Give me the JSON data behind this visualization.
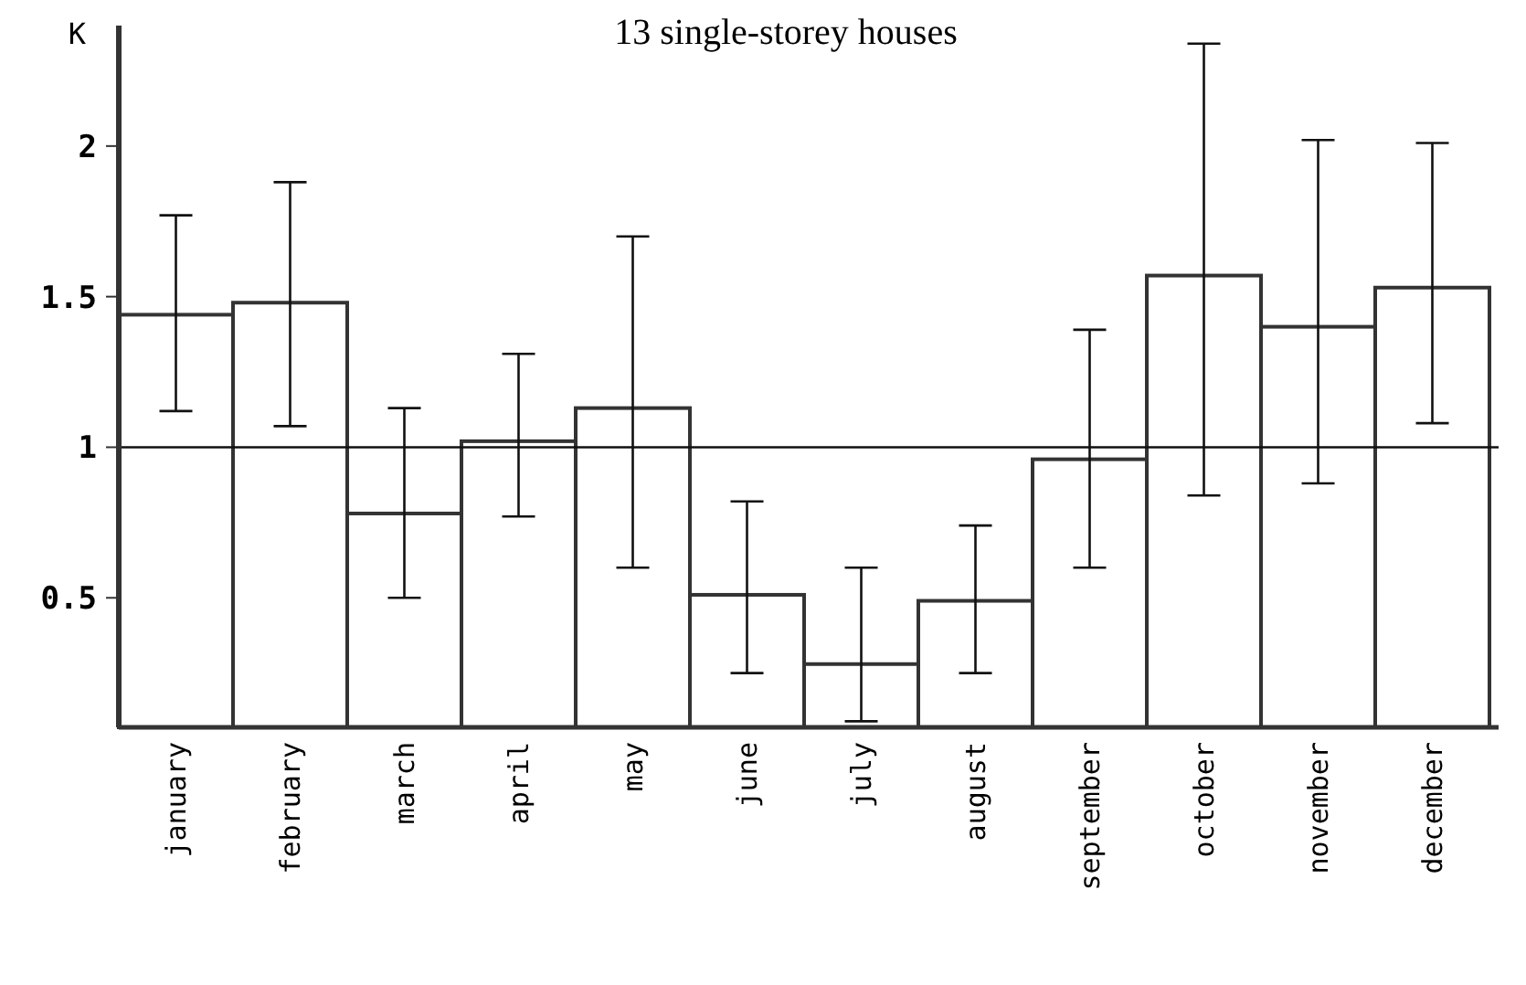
{
  "chart_data": {
    "type": "bar",
    "title": "13 single-storey houses",
    "ylabel": "K",
    "categories": [
      "january",
      "february",
      "march",
      "april",
      "may",
      "june",
      "july",
      "august",
      "september",
      "october",
      "november",
      "december"
    ],
    "values": [
      1.44,
      1.48,
      0.78,
      1.02,
      1.13,
      0.51,
      0.28,
      0.49,
      0.96,
      1.57,
      1.4,
      1.53
    ],
    "errors": [
      [
        1.12,
        1.77
      ],
      [
        1.07,
        1.88
      ],
      [
        0.5,
        1.13
      ],
      [
        0.77,
        1.31
      ],
      [
        0.6,
        1.7
      ],
      [
        0.25,
        0.82
      ],
      [
        0.09,
        0.6
      ],
      [
        0.25,
        0.74
      ],
      [
        0.6,
        1.39
      ],
      [
        0.84,
        2.34
      ],
      [
        0.88,
        2.02
      ],
      [
        1.08,
        2.01
      ]
    ],
    "color": "#ffffff",
    "ylim": [
      0.07,
      2.4
    ],
    "yticks": [
      0.5,
      1,
      1.5,
      2
    ],
    "ref_lines": [
      {
        "axis": "y",
        "value": 1
      }
    ],
    "grid": false
  }
}
